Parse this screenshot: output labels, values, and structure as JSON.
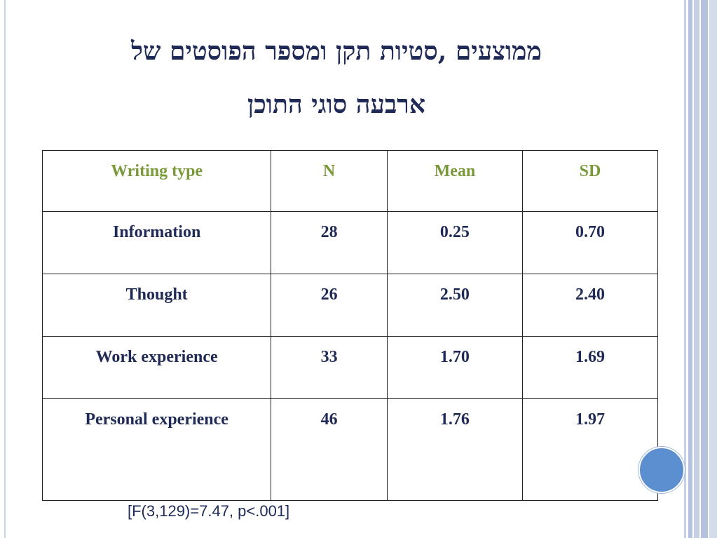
{
  "title": {
    "line1": "ממוצעים ,סטיות תקן ומספר הפוסטים של",
    "line2": "ארבעה סוגי התוכן"
  },
  "table": {
    "headers": [
      "Writing type",
      "N",
      "Mean",
      "SD"
    ],
    "rows": [
      [
        "Information",
        "28",
        "0.25",
        "0.70"
      ],
      [
        "Thought",
        "26",
        "2.50",
        "2.40"
      ],
      [
        "Work experience",
        "33",
        "1.70",
        "1.69"
      ],
      [
        "Personal experience",
        "46",
        "1.76",
        "1.97"
      ]
    ]
  },
  "footnote": "[F(3,129)=7.47, p<.001]",
  "colors": {
    "title": "#1f2a56",
    "header_text": "#7a9a3a",
    "cell_text": "#1f2a56",
    "accent_circle": "#5b8fd0"
  }
}
